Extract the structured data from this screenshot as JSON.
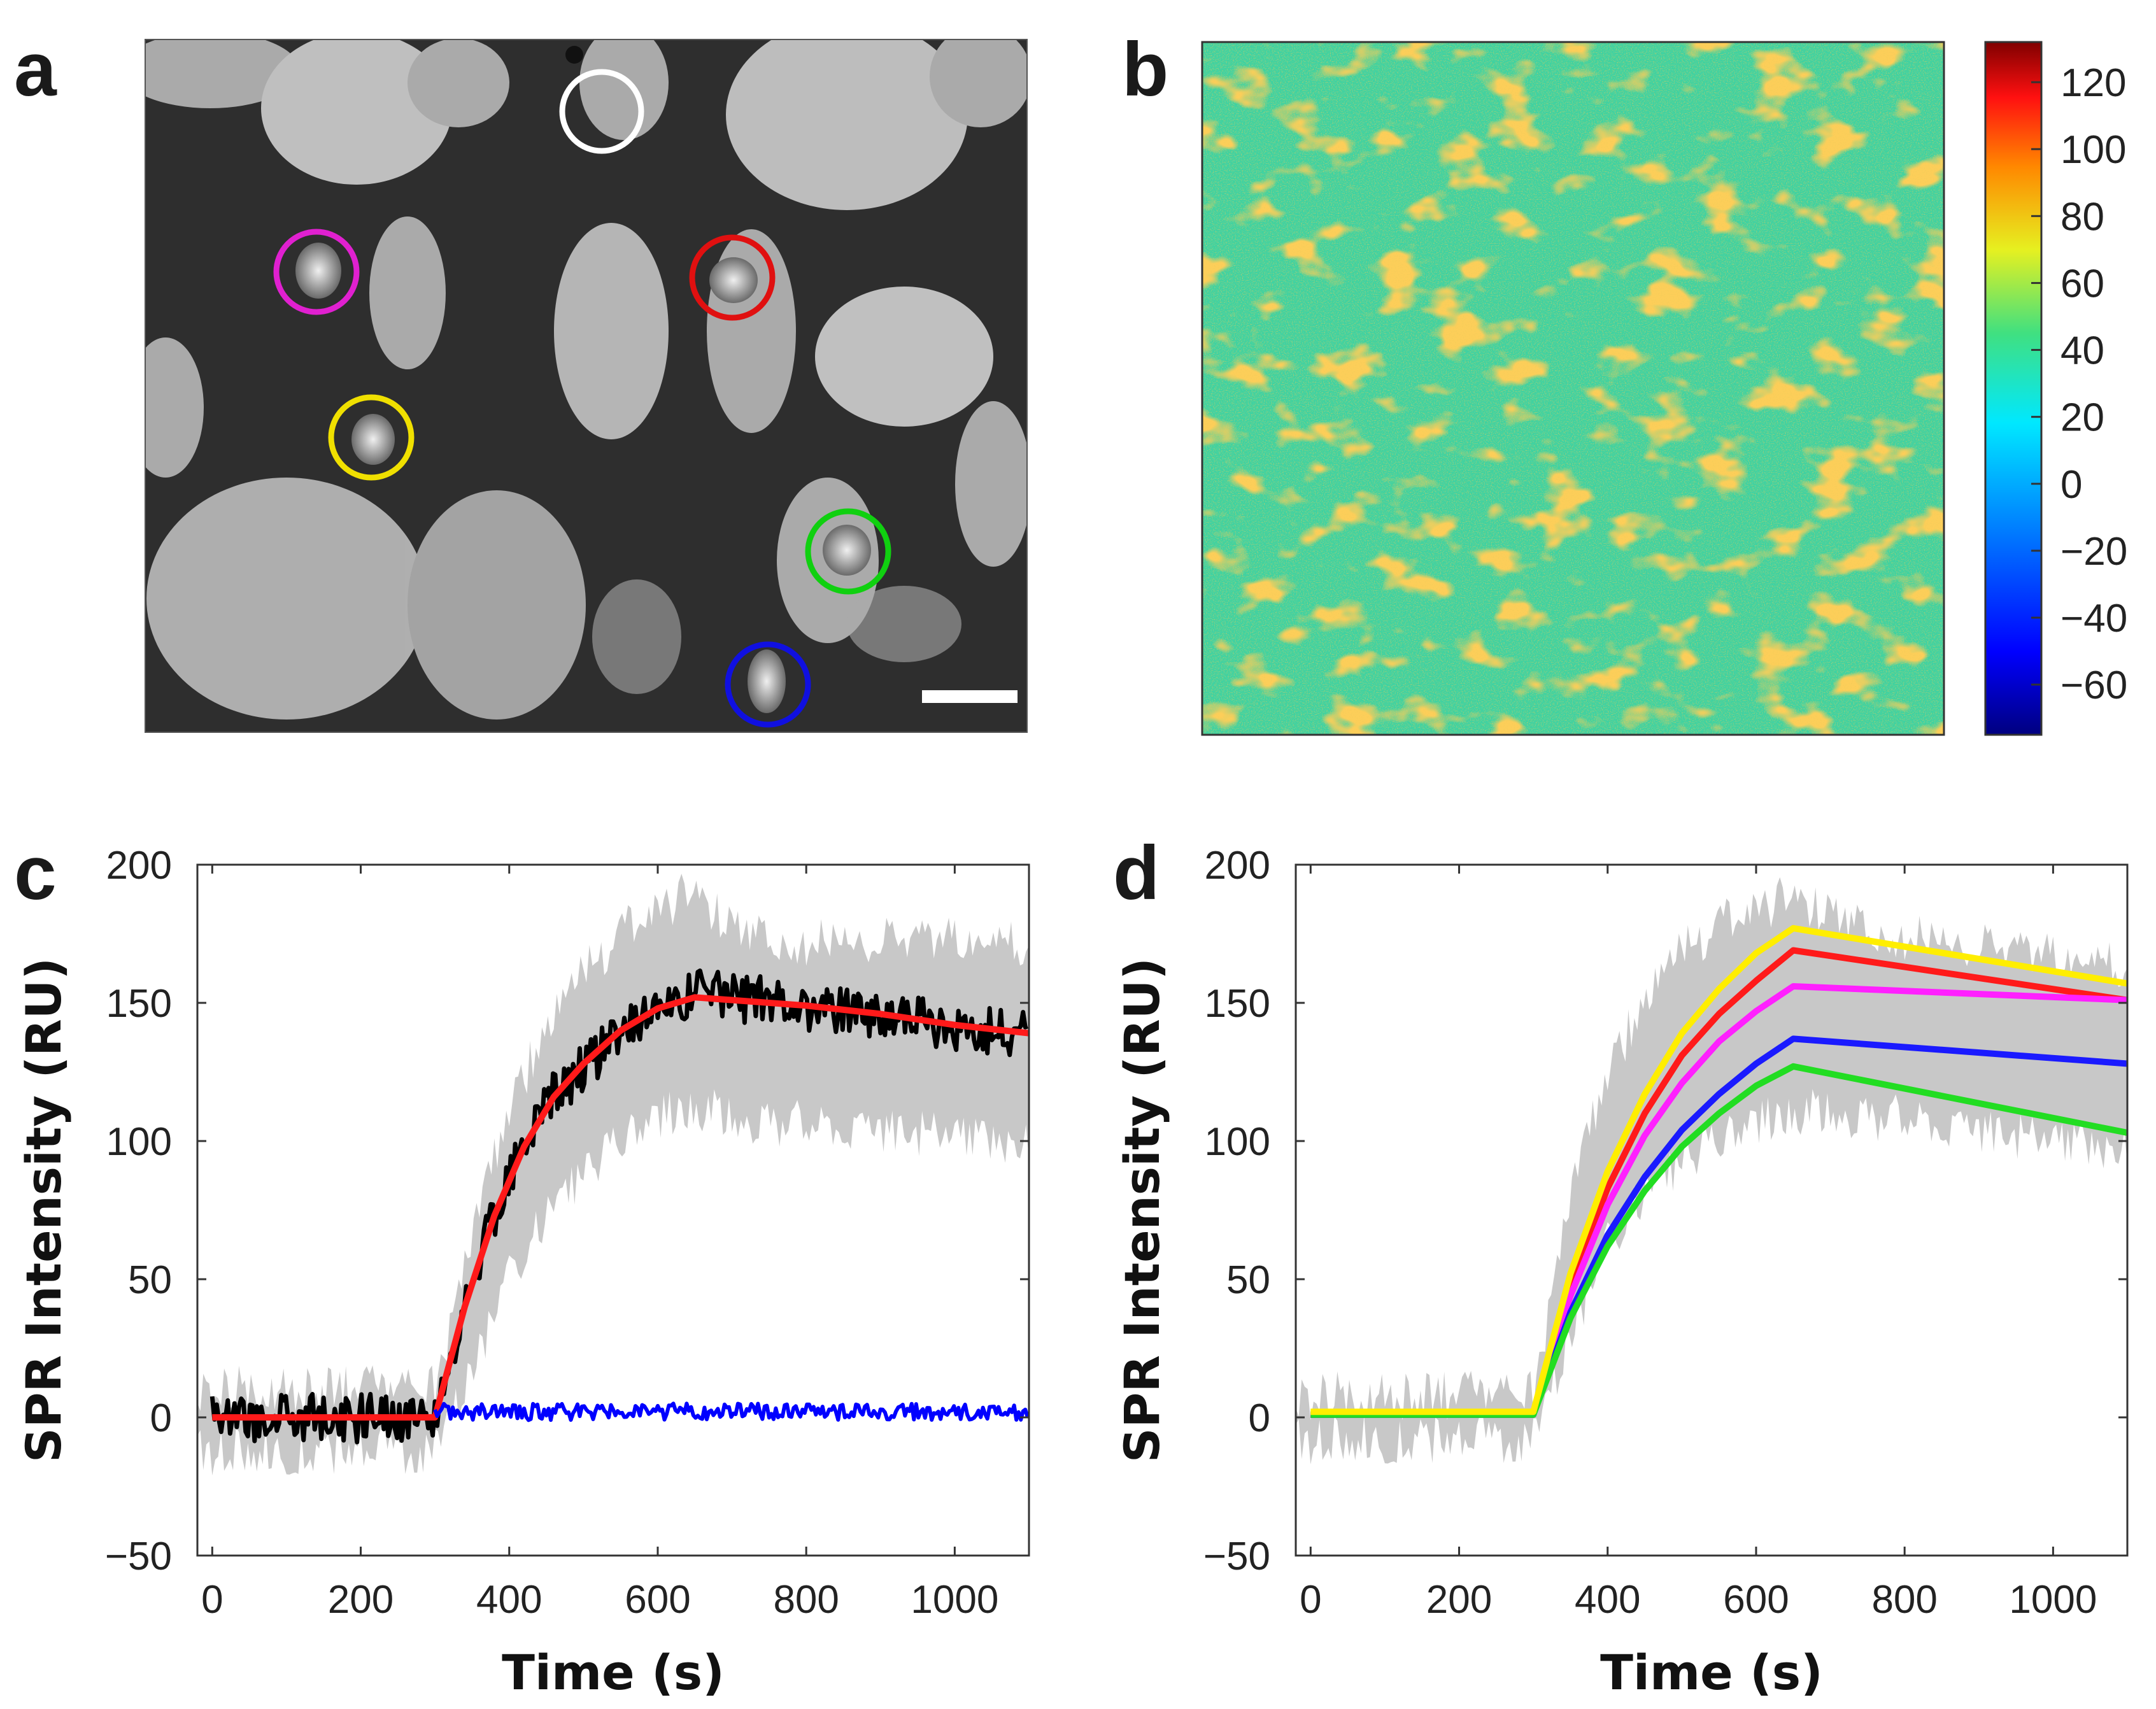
{
  "panels": {
    "a": "a",
    "b": "b",
    "c": "c",
    "d": "d"
  },
  "image_a": {
    "circles": [
      {
        "name": "white-circle",
        "color": "#ffffff"
      },
      {
        "name": "magenta-circle",
        "color": "#e020d0"
      },
      {
        "name": "red-circle",
        "color": "#e01010"
      },
      {
        "name": "yellow-circle",
        "color": "#f0e000"
      },
      {
        "name": "green-circle",
        "color": "#10d010"
      },
      {
        "name": "blue-circle",
        "color": "#1010e0"
      }
    ],
    "scale_bar_color": "#ffffff"
  },
  "colorbar": {
    "ticks": [
      "120",
      "100",
      "80",
      "60",
      "40",
      "20",
      "0",
      "−20",
      "−40",
      "−60"
    ],
    "values": [
      120,
      100,
      80,
      60,
      40,
      20,
      0,
      -20,
      -40,
      -60
    ],
    "range": [
      -75,
      132
    ]
  },
  "chart_data": [
    {
      "id": "c",
      "type": "line",
      "xlabel": "Time (s)",
      "ylabel": "SPR Intensity (RU)",
      "xlim": [
        -20,
        1100
      ],
      "ylim": [
        -50,
        200
      ],
      "xticks": [
        0,
        200,
        400,
        600,
        800,
        1000
      ],
      "yticks": [
        -50,
        0,
        50,
        100,
        150,
        200
      ],
      "series": [
        {
          "name": "spread",
          "color": "#c8c8c8",
          "x": [
            0,
            300,
            350,
            400,
            450,
            500,
            550,
            600,
            650,
            700,
            800,
            900,
            1000,
            1100
          ],
          "low": [
            -12,
            -12,
            18,
            50,
            72,
            88,
            100,
            108,
            112,
            108,
            106,
            104,
            102,
            100
          ],
          "high": [
            10,
            10,
            65,
            112,
            140,
            160,
            175,
            184,
            190,
            175,
            172,
            172,
            172,
            170
          ]
        },
        {
          "name": "mean",
          "color": "#000000",
          "x": [
            0,
            300,
            340,
            380,
            420,
            460,
            500,
            550,
            600,
            650,
            700,
            800,
            900,
            1000,
            1100
          ],
          "y": [
            0,
            0,
            40,
            74,
            98,
            116,
            127,
            139,
            148,
            153,
            152,
            149,
            146,
            142,
            138
          ]
        },
        {
          "name": "fit",
          "color": "#ff1a1a",
          "x": [
            0,
            300,
            340,
            380,
            420,
            460,
            500,
            550,
            600,
            650,
            800,
            900,
            1000,
            1100
          ],
          "y": [
            0,
            0,
            40,
            73,
            98,
            116,
            128,
            140,
            148,
            152,
            149,
            146,
            142,
            139
          ]
        },
        {
          "name": "reference",
          "color": "#0000ff",
          "x": [
            300,
            1100
          ],
          "y": [
            2,
            2
          ]
        }
      ]
    },
    {
      "id": "d",
      "type": "line",
      "xlabel": "Time (s)",
      "ylabel": "SPR Intensity (RU)",
      "xlim": [
        -20,
        1100
      ],
      "ylim": [
        -50,
        200
      ],
      "xticks": [
        0,
        200,
        400,
        600,
        800,
        1000
      ],
      "yticks": [
        -50,
        0,
        50,
        100,
        150,
        200
      ],
      "series": [
        {
          "name": "spread",
          "color": "#c8c8c8",
          "x": [
            0,
            300,
            350,
            400,
            450,
            500,
            550,
            600,
            650,
            700,
            800,
            900,
            1000,
            1100
          ],
          "low": [
            -8,
            -8,
            30,
            62,
            80,
            92,
            100,
            106,
            110,
            110,
            108,
            104,
            100,
            98
          ],
          "high": [
            8,
            8,
            80,
            125,
            150,
            168,
            178,
            184,
            188,
            180,
            174,
            170,
            166,
            162
          ]
        },
        {
          "name": "red",
          "color": "#ff1a1a",
          "x": [
            0,
            300,
            350,
            400,
            450,
            500,
            550,
            600,
            650,
            1100
          ],
          "y": [
            1,
            1,
            48,
            83,
            110,
            131,
            146,
            158,
            169,
            151
          ]
        },
        {
          "name": "magenta",
          "color": "#ff20ff",
          "x": [
            0,
            300,
            350,
            400,
            450,
            500,
            550,
            600,
            650,
            1100
          ],
          "y": [
            1,
            1,
            44,
            77,
            102,
            121,
            136,
            147,
            156,
            151
          ]
        },
        {
          "name": "blue",
          "color": "#1a1aff",
          "x": [
            0,
            300,
            350,
            400,
            450,
            500,
            550,
            600,
            650,
            1100
          ],
          "y": [
            1,
            1,
            38,
            66,
            87,
            104,
            117,
            128,
            137,
            128
          ]
        },
        {
          "name": "green",
          "color": "#22dd22",
          "x": [
            0,
            300,
            350,
            400,
            450,
            500,
            550,
            600,
            650,
            1100
          ],
          "y": [
            1,
            1,
            36,
            62,
            82,
            98,
            110,
            120,
            127,
            103
          ]
        },
        {
          "name": "yellow",
          "color": "#ffee00",
          "x": [
            0,
            300,
            350,
            400,
            450,
            500,
            550,
            600,
            650,
            1100
          ],
          "y": [
            2,
            2,
            52,
            89,
            117,
            139,
            155,
            168,
            177,
            157
          ]
        }
      ]
    }
  ]
}
